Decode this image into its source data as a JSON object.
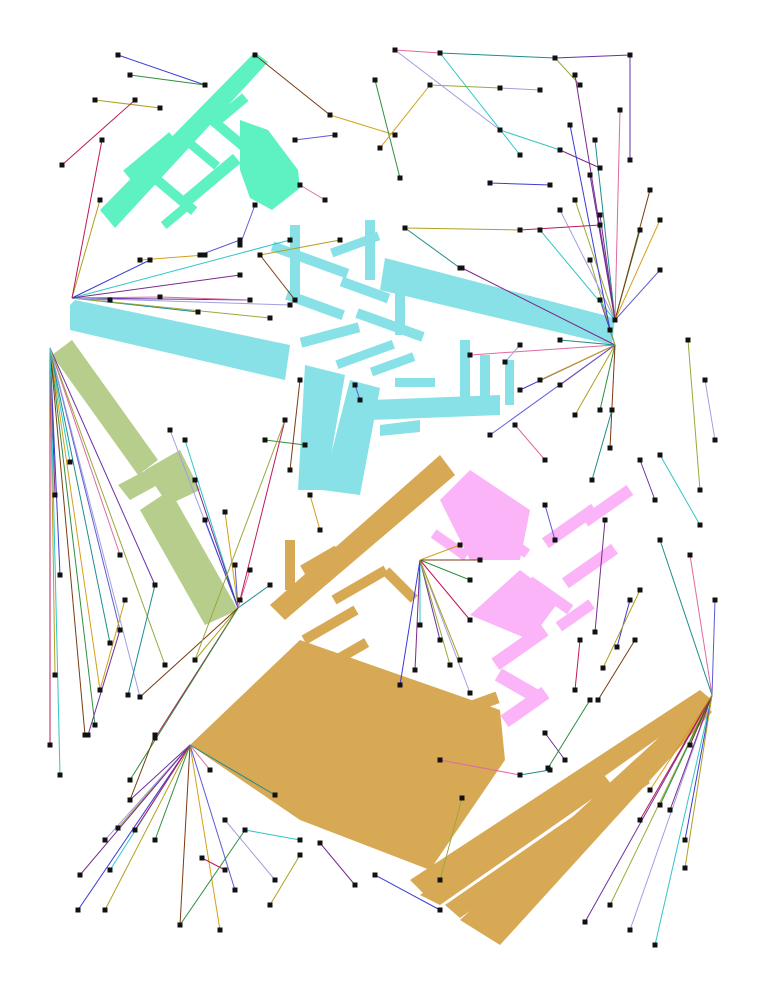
{
  "colors": {
    "background": "#ffffff",
    "mint_cluster": "#5ef2c2",
    "cyan_cluster": "#87e1e6",
    "olive_cluster": "#b6cd8c",
    "gold_cluster": "#d7a954",
    "pink_cluster": "#fbb4f7",
    "node": "#111111",
    "wires": [
      "#2fc6c6",
      "#7a2b8c",
      "#3b3bd6",
      "#b0a020",
      "#c0175a",
      "#2f8f3f",
      "#7a3a10",
      "#d4a017",
      "#5b5bd6",
      "#e06aa0",
      "#1e8c8c",
      "#6b2fa0",
      "#9aa83a",
      "#a0a0e0"
    ]
  },
  "clusters": [
    {
      "id": "mint",
      "color": "mint_cluster"
    },
    {
      "id": "cyan",
      "color": "cyan_cluster"
    },
    {
      "id": "olive",
      "color": "olive_cluster"
    },
    {
      "id": "gold",
      "color": "gold_cluster"
    },
    {
      "id": "pink",
      "color": "pink_cluster"
    }
  ]
}
